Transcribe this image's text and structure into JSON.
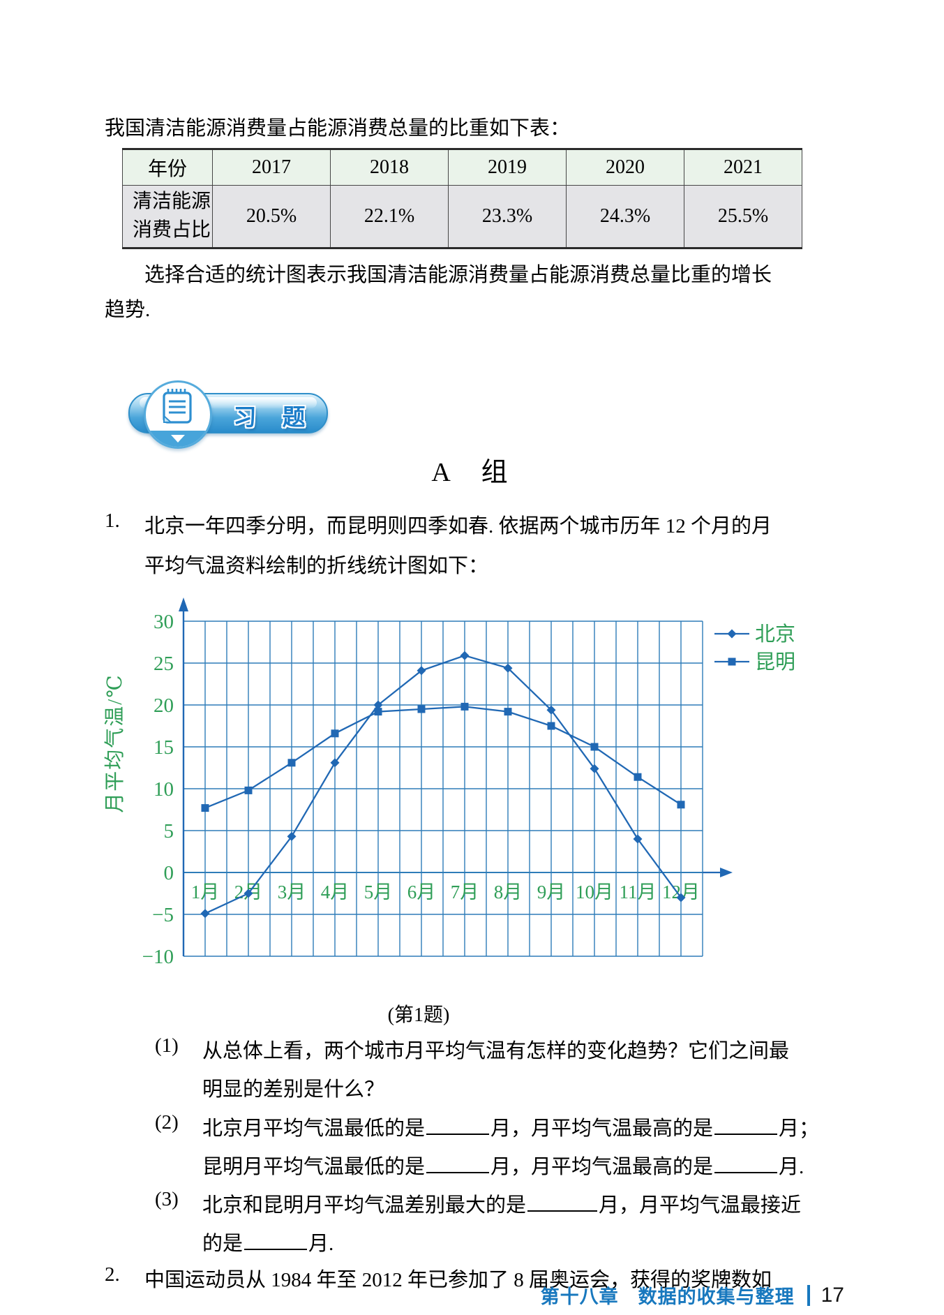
{
  "colors": {
    "series_blue": "#2068b4",
    "grid_blue": "#2e7cb8",
    "label_green": "#2f9e57",
    "footer_blue": "#1878be",
    "table_header_bg": "#eaf3ea",
    "table_row_bg": "#e4e4e7",
    "badge_blue": "#3399d6"
  },
  "intro": "我国清洁能源消费量占能源消费总量的比重如下表：",
  "table": {
    "header": [
      "年份",
      "2017",
      "2018",
      "2019",
      "2020",
      "2021"
    ],
    "row_label_lines": [
      "清洁能源",
      "消费占比"
    ],
    "values": [
      "20.5%",
      "22.1%",
      "23.3%",
      "24.3%",
      "25.5%"
    ]
  },
  "paragraph": {
    "line1": "选择合适的统计图表示我国清洁能源消费量占能源消费总量比重的增长",
    "line2": "趋势."
  },
  "exercise_badge": "习　题",
  "section_heading": "A　组",
  "problem1": {
    "number": "1.",
    "line1": "北京一年四季分明，而昆明则四季如春. 依据两个城市历年 12 个月的月",
    "line2": "平均气温资料绘制的折线统计图如下："
  },
  "chart_caption": "(第1题)",
  "questions": {
    "q1": {
      "number": "(1)",
      "line1": "从总体上看，两个城市月平均气温有怎样的变化趋势？它们之间最",
      "line2": "明显的差别是什么？"
    },
    "q2": {
      "number": "(2)",
      "l1_seg1": "北京月平均气温最低的是",
      "l1_seg2": "月，月平均气温最高的是",
      "l1_seg3": "月；",
      "l2_seg1": "昆明月平均气温最低的是",
      "l2_seg2": "月，月平均气温最高的是",
      "l2_seg3": "月."
    },
    "q3": {
      "number": "(3)",
      "l1_seg1": "北京和昆明月平均气温差别最大的是",
      "l1_seg2": "月，月平均气温最接近",
      "l2_seg1": "的是",
      "l2_seg2": "月."
    }
  },
  "problem2": {
    "number": "2.",
    "line1": "中国运动员从 1984 年至 2012 年已参加了 8 届奥运会，获得的奖牌数如"
  },
  "footer": {
    "chapter": "第十八章　数据的收集与整理",
    "page": "17"
  },
  "chart_data": {
    "type": "line",
    "x": [
      "1月",
      "2月",
      "3月",
      "4月",
      "5月",
      "6月",
      "7月",
      "8月",
      "9月",
      "10月",
      "11月",
      "12月"
    ],
    "series": [
      {
        "name": "北京",
        "marker": "diamond",
        "values": [
          -4.9,
          -2.5,
          4.3,
          13.1,
          20,
          24.1,
          25.9,
          24.4,
          19.4,
          12.4,
          4,
          -3
        ]
      },
      {
        "name": "昆明",
        "marker": "square",
        "values": [
          7.7,
          9.8,
          13.1,
          16.6,
          19.2,
          19.5,
          19.8,
          19.2,
          17.5,
          15,
          11.4,
          8.1
        ]
      }
    ],
    "ylabel": "月平均气温/℃",
    "yticks": [
      30,
      25,
      20,
      15,
      10,
      5,
      0,
      -5,
      -10
    ],
    "ylim": [
      -10,
      30
    ],
    "grid": true,
    "legend_position": "right"
  }
}
